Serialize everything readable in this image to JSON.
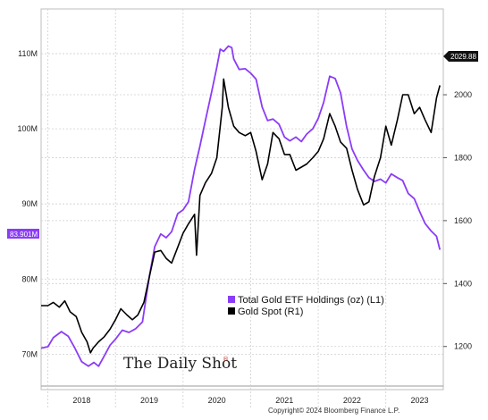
{
  "chart_data": {
    "type": "line",
    "title": "",
    "x_tick_labels": [
      "2018",
      "2019",
      "2020",
      "2021",
      "2022",
      "2023"
    ],
    "xlim": [
      2017.9,
      2023.85
    ],
    "left_axis": {
      "ylim": [
        66,
        115
      ],
      "ticks": [
        "70M",
        "80M",
        "90M",
        "100M",
        "110M"
      ],
      "tick_values": [
        70,
        80,
        90,
        100,
        110
      ]
    },
    "right_axis": {
      "ylim": [
        1080,
        2250
      ],
      "ticks": [
        "1200",
        "1400",
        "1600",
        "1800",
        "2000"
      ],
      "tick_values": [
        1200,
        1400,
        1600,
        1800,
        2000
      ]
    },
    "grid": true,
    "legend_position": "lower-middle",
    "series": [
      {
        "name": "Total Gold ETF Holdings (oz) (L1)",
        "axis": "left",
        "color": "#8b3cf7",
        "x": [
          2017.9,
          2018.0,
          2018.08,
          2018.2,
          2018.3,
          2018.4,
          2018.5,
          2018.6,
          2018.68,
          2018.75,
          2018.83,
          2018.92,
          2019.0,
          2019.1,
          2019.2,
          2019.3,
          2019.4,
          2019.5,
          2019.58,
          2019.67,
          2019.75,
          2019.83,
          2019.92,
          2020.0,
          2020.08,
          2020.17,
          2020.25,
          2020.33,
          2020.42,
          2020.5,
          2020.55,
          2020.6,
          2020.67,
          2020.72,
          2020.75,
          2020.83,
          2020.92,
          2021.0,
          2021.08,
          2021.17,
          2021.25,
          2021.33,
          2021.42,
          2021.5,
          2021.58,
          2021.67,
          2021.75,
          2021.83,
          2021.92,
          2022.0,
          2022.08,
          2022.17,
          2022.25,
          2022.33,
          2022.42,
          2022.5,
          2022.58,
          2022.67,
          2022.75,
          2022.83,
          2022.92,
          2023.0,
          2023.08,
          2023.17,
          2023.25,
          2023.33,
          2023.42,
          2023.5,
          2023.58,
          2023.67,
          2023.75,
          2023.8
        ],
        "values": [
          70.8,
          71.0,
          72.2,
          73.0,
          72.4,
          70.8,
          69.0,
          68.4,
          68.9,
          68.4,
          69.7,
          71.2,
          72.0,
          73.2,
          72.9,
          73.4,
          74.3,
          80.3,
          84.3,
          86.0,
          85.5,
          86.3,
          88.7,
          89.2,
          90.3,
          94.6,
          97.7,
          101.1,
          104.8,
          108.2,
          110.6,
          110.3,
          111.0,
          110.8,
          109.3,
          107.9,
          108.0,
          107.4,
          106.6,
          102.9,
          101.1,
          101.3,
          100.6,
          98.9,
          98.4,
          98.9,
          98.3,
          99.3,
          100.0,
          101.4,
          103.5,
          107.0,
          106.7,
          104.8,
          100.3,
          97.3,
          95.8,
          94.5,
          93.5,
          93.0,
          93.3,
          92.8,
          94.0,
          93.5,
          93.1,
          91.4,
          90.7,
          89.0,
          87.4,
          86.4,
          85.7,
          83.9
        ]
      },
      {
        "name": "Gold Spot (R1)",
        "axis": "right",
        "color": "#000000",
        "x": [
          2017.9,
          2018.0,
          2018.08,
          2018.17,
          2018.25,
          2018.33,
          2018.42,
          2018.5,
          2018.58,
          2018.63,
          2018.67,
          2018.75,
          2018.83,
          2018.92,
          2019.0,
          2019.08,
          2019.17,
          2019.25,
          2019.33,
          2019.42,
          2019.5,
          2019.58,
          2019.67,
          2019.75,
          2019.83,
          2019.92,
          2020.0,
          2020.08,
          2020.17,
          2020.2,
          2020.25,
          2020.33,
          2020.42,
          2020.5,
          2020.58,
          2020.6,
          2020.67,
          2020.75,
          2020.83,
          2020.92,
          2021.0,
          2021.08,
          2021.17,
          2021.25,
          2021.33,
          2021.42,
          2021.5,
          2021.58,
          2021.67,
          2021.75,
          2021.83,
          2021.92,
          2022.0,
          2022.08,
          2022.17,
          2022.25,
          2022.33,
          2022.42,
          2022.5,
          2022.58,
          2022.67,
          2022.75,
          2022.83,
          2022.92,
          2023.0,
          2023.08,
          2023.17,
          2023.25,
          2023.33,
          2023.42,
          2023.5,
          2023.58,
          2023.67,
          2023.75,
          2023.8
        ],
        "values": [
          1330,
          1330,
          1340,
          1325,
          1345,
          1310,
          1295,
          1245,
          1215,
          1180,
          1195,
          1215,
          1230,
          1255,
          1285,
          1320,
          1300,
          1285,
          1300,
          1340,
          1420,
          1500,
          1505,
          1480,
          1465,
          1515,
          1560,
          1590,
          1620,
          1490,
          1680,
          1720,
          1750,
          1800,
          1960,
          2050,
          1960,
          1900,
          1880,
          1870,
          1880,
          1820,
          1730,
          1780,
          1880,
          1860,
          1810,
          1810,
          1760,
          1770,
          1780,
          1800,
          1820,
          1860,
          1940,
          1900,
          1850,
          1830,
          1760,
          1700,
          1650,
          1660,
          1740,
          1800,
          1900,
          1840,
          1920,
          2000,
          2000,
          1940,
          1960,
          1920,
          1880,
          1990,
          2030
        ]
      }
    ],
    "annotations": {
      "left_last_value": "83.901M",
      "right_last_value": "2029.88"
    },
    "colors": {
      "etf": "#8b3cf7",
      "gold": "#000000",
      "grid": "#cfcfcf",
      "tag_gold": "#111111"
    }
  },
  "watermark": "The Daily Shot",
  "watermark_mark": "®",
  "copyright": "Copyright© 2024 Bloomberg Finance L.P."
}
